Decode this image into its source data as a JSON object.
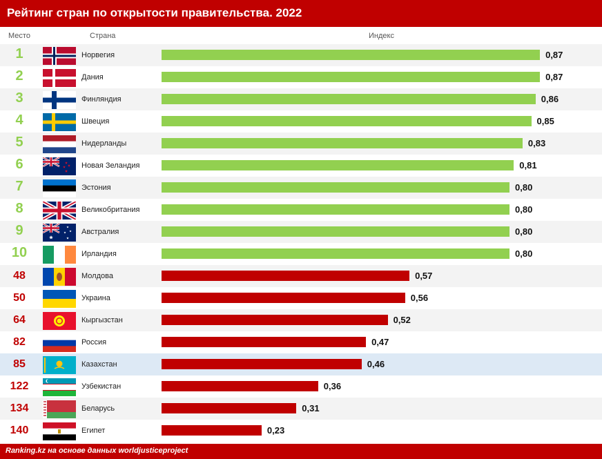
{
  "title": "Рейтинг стран по открытости правительства. 2022",
  "columns": {
    "rank": "Место",
    "country": "Страна",
    "index": "Индекс"
  },
  "source": "Ranking.kz на основе данных worldjusticeproject",
  "colors": {
    "header": "#c00000",
    "top_bar": "#92d050",
    "other_bar": "#c00000",
    "highlight_row": "#dde9f5"
  },
  "chart_data": {
    "type": "bar",
    "orientation": "horizontal",
    "title": "Рейтинг стран по открытости правительства. 2022",
    "xlabel": "Индекс",
    "xlim": [
      0,
      1
    ],
    "rows": [
      {
        "rank": "1",
        "country": "Норвегия",
        "value": 0.87,
        "label": "0,87",
        "group": "top",
        "flag": "norway-flag"
      },
      {
        "rank": "2",
        "country": "Дания",
        "value": 0.87,
        "label": "0,87",
        "group": "top",
        "flag": "denmark-flag"
      },
      {
        "rank": "3",
        "country": "Финляндия",
        "value": 0.86,
        "label": "0,86",
        "group": "top",
        "flag": "finland-flag"
      },
      {
        "rank": "4",
        "country": "Швеция",
        "value": 0.85,
        "label": "0,85",
        "group": "top",
        "flag": "sweden-flag"
      },
      {
        "rank": "5",
        "country": "Нидерланды",
        "value": 0.83,
        "label": "0,83",
        "group": "top",
        "flag": "netherlands-flag"
      },
      {
        "rank": "6",
        "country": "Новая Зеландия",
        "value": 0.81,
        "label": "0,81",
        "group": "top",
        "flag": "new-zealand-flag"
      },
      {
        "rank": "7",
        "country": "Эстония",
        "value": 0.8,
        "label": "0,80",
        "group": "top",
        "flag": "estonia-flag"
      },
      {
        "rank": "8",
        "country": "Великобритания",
        "value": 0.8,
        "label": "0,80",
        "group": "top",
        "flag": "uk-flag"
      },
      {
        "rank": "9",
        "country": "Австралия",
        "value": 0.8,
        "label": "0,80",
        "group": "top",
        "flag": "australia-flag"
      },
      {
        "rank": "10",
        "country": "Ирландия",
        "value": 0.8,
        "label": "0,80",
        "group": "top",
        "flag": "ireland-flag"
      },
      {
        "rank": "48",
        "country": "Молдова",
        "value": 0.57,
        "label": "0,57",
        "group": "other",
        "flag": "moldova-flag"
      },
      {
        "rank": "50",
        "country": "Украина",
        "value": 0.56,
        "label": "0,56",
        "group": "other",
        "flag": "ukraine-flag"
      },
      {
        "rank": "64",
        "country": "Кыргызстан",
        "value": 0.52,
        "label": "0,52",
        "group": "other",
        "flag": "kyrgyzstan-flag"
      },
      {
        "rank": "82",
        "country": "Россия",
        "value": 0.47,
        "label": "0,47",
        "group": "other",
        "flag": "russia-flag"
      },
      {
        "rank": "85",
        "country": "Казахстан",
        "value": 0.46,
        "label": "0,46",
        "group": "other",
        "flag": "kazakhstan-flag",
        "highlight": true
      },
      {
        "rank": "122",
        "country": "Узбекистан",
        "value": 0.36,
        "label": "0,36",
        "group": "other",
        "flag": "uzbekistan-flag"
      },
      {
        "rank": "134",
        "country": "Беларусь",
        "value": 0.31,
        "label": "0,31",
        "group": "other",
        "flag": "belarus-flag"
      },
      {
        "rank": "140",
        "country": "Египет",
        "value": 0.23,
        "label": "0,23",
        "group": "other",
        "flag": "egypt-flag"
      }
    ]
  }
}
